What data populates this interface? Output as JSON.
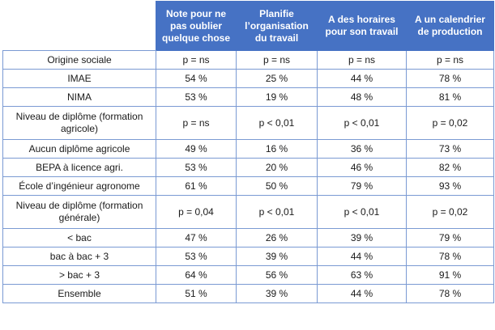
{
  "table": {
    "headers": [
      "",
      "Note pour ne pas oublier quelque chose",
      "Planifie l’organisation du travail",
      "A des horaires pour son travail",
      "A un calendrier de production"
    ],
    "rows": [
      {
        "label": "Origine sociale",
        "values": [
          "p = ns",
          "p = ns",
          "p = ns",
          "p = ns"
        ]
      },
      {
        "label": "IMAE",
        "values": [
          "54 %",
          "25 %",
          "44 %",
          "78 %"
        ]
      },
      {
        "label": "NIMA",
        "values": [
          "53 %",
          "19 %",
          "48 %",
          "81 %"
        ]
      },
      {
        "label": "Niveau de diplôme (formation agricole)",
        "values": [
          "p = ns",
          "p < 0,01",
          "p < 0,01",
          "p = 0,02"
        ]
      },
      {
        "label": "Aucun diplôme agricole",
        "values": [
          "49 %",
          "16 %",
          "36 %",
          "73 %"
        ]
      },
      {
        "label": "BEPA à licence agri.",
        "values": [
          "53 %",
          "20 %",
          "46 %",
          "82 %"
        ]
      },
      {
        "label": "École d’ingénieur agronome",
        "values": [
          "61 %",
          "50 %",
          "79 %",
          "93 %"
        ]
      },
      {
        "label": "Niveau de diplôme (formation générale)",
        "values": [
          "p = 0,04",
          "p < 0,01",
          "p < 0,01",
          "p = 0,02"
        ]
      },
      {
        "label": "< bac",
        "values": [
          "47 %",
          "26 %",
          "39 %",
          "79 %"
        ]
      },
      {
        "label": "bac à bac + 3",
        "values": [
          "53 %",
          "39 %",
          "44 %",
          "78 %"
        ]
      },
      {
        "label": "> bac + 3",
        "values": [
          "64 %",
          "56 %",
          "63 %",
          "91 %"
        ]
      },
      {
        "label": "Ensemble",
        "values": [
          "51 %",
          "39 %",
          "44 %",
          "78 %"
        ]
      }
    ]
  }
}
